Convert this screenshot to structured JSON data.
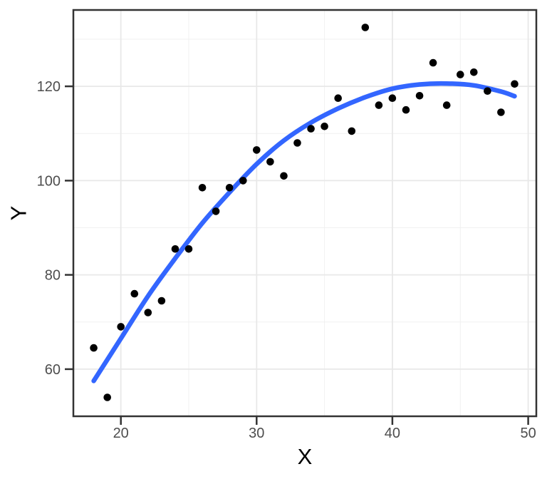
{
  "chart_data": {
    "type": "scatter",
    "title": "",
    "xlabel": "X",
    "ylabel": "Y",
    "x_ticks": [
      20,
      30,
      40,
      50
    ],
    "y_ticks": [
      60,
      80,
      100,
      120
    ],
    "x_minor_ticks": [
      25,
      35,
      45
    ],
    "y_minor_ticks": [
      70,
      90,
      110,
      130
    ],
    "xlim": [
      16.5,
      50.6
    ],
    "ylim": [
      50,
      136.2
    ],
    "grid": true,
    "legend_position": "none",
    "points": [
      [
        18,
        64.5
      ],
      [
        19,
        54
      ],
      [
        20,
        69
      ],
      [
        21,
        76
      ],
      [
        22,
        72
      ],
      [
        23,
        74.5
      ],
      [
        24,
        85.5
      ],
      [
        25,
        85.5
      ],
      [
        26,
        98.5
      ],
      [
        27,
        93.5
      ],
      [
        28,
        98.5
      ],
      [
        29,
        100
      ],
      [
        30,
        106.5
      ],
      [
        31,
        104
      ],
      [
        32,
        101
      ],
      [
        33,
        108
      ],
      [
        34,
        111
      ],
      [
        35,
        111.5
      ],
      [
        36,
        117.5
      ],
      [
        37,
        110.5
      ],
      [
        38,
        132.5
      ],
      [
        39,
        116
      ],
      [
        40,
        117.5
      ],
      [
        41,
        115
      ],
      [
        42,
        118
      ],
      [
        43,
        125
      ],
      [
        44,
        116
      ],
      [
        45,
        122.5
      ],
      [
        46,
        123
      ],
      [
        47,
        119
      ],
      [
        48,
        114.5
      ],
      [
        49,
        120.5
      ]
    ],
    "smooth_line": {
      "color": "#3366FF",
      "width": 6.5,
      "points": [
        [
          18,
          57.5
        ],
        [
          20,
          66.5
        ],
        [
          22,
          75.5
        ],
        [
          24,
          83.5
        ],
        [
          26,
          91
        ],
        [
          28,
          97.5
        ],
        [
          30,
          103.5
        ],
        [
          32,
          108.5
        ],
        [
          34,
          112.3
        ],
        [
          36,
          115.3
        ],
        [
          38,
          117.7
        ],
        [
          40,
          119.5
        ],
        [
          42,
          120.4
        ],
        [
          44,
          120.6
        ],
        [
          46,
          120.2
        ],
        [
          48,
          118.9
        ],
        [
          49,
          117.9
        ]
      ]
    },
    "style": {
      "point_color": "#000000",
      "point_radius": 5.3,
      "panel_background": "#FFFFFF",
      "grid_major_color": "#E8E8E8",
      "grid_minor_color": "#F0F0F0",
      "panel_border_color": "#333333",
      "tick_color": "#333333",
      "tick_label_color": "#4D4D4D",
      "tick_label_size": 20,
      "axis_title_color": "#000000"
    }
  }
}
